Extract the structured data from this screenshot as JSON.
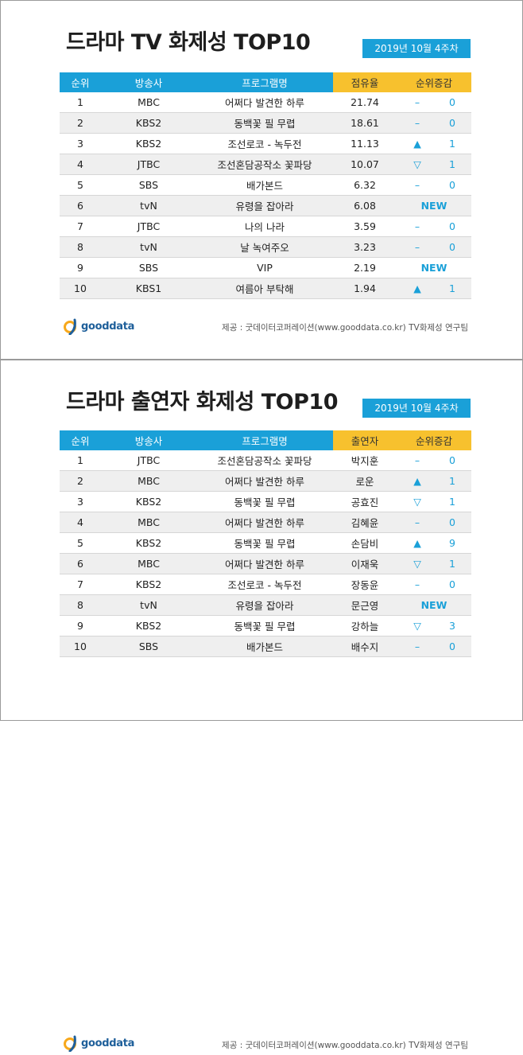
{
  "drama": {
    "title": "드라마 TV 화제성 TOP10",
    "date": "2019년 10월 4주차",
    "headers": [
      "순위",
      "방송사",
      "프로그램명",
      "점유율",
      "순위증감"
    ],
    "rows": [
      {
        "rank": "1",
        "broadcaster": "MBC",
        "program": "어쩌다 발견한 하루",
        "value": "21.74",
        "sym": "–",
        "num": "0"
      },
      {
        "rank": "2",
        "broadcaster": "KBS2",
        "program": "동백꽃 필 무렵",
        "value": "18.61",
        "sym": "–",
        "num": "0"
      },
      {
        "rank": "3",
        "broadcaster": "KBS2",
        "program": "조선로코 - 녹두전",
        "value": "11.13",
        "sym": "▲",
        "num": "1"
      },
      {
        "rank": "4",
        "broadcaster": "JTBC",
        "program": "조선혼담공작소 꽃파당",
        "value": "10.07",
        "sym": "▽",
        "num": "1"
      },
      {
        "rank": "5",
        "broadcaster": "SBS",
        "program": "배가본드",
        "value": "6.32",
        "sym": "–",
        "num": "0"
      },
      {
        "rank": "6",
        "broadcaster": "tvN",
        "program": "유령을 잡아라",
        "value": "6.08",
        "sym": "",
        "num": "NEW"
      },
      {
        "rank": "7",
        "broadcaster": "JTBC",
        "program": "나의 나라",
        "value": "3.59",
        "sym": "–",
        "num": "0"
      },
      {
        "rank": "8",
        "broadcaster": "tvN",
        "program": "날 녹여주오",
        "value": "3.23",
        "sym": "–",
        "num": "0"
      },
      {
        "rank": "9",
        "broadcaster": "SBS",
        "program": "VIP",
        "value": "2.19",
        "sym": "",
        "num": "NEW"
      },
      {
        "rank": "10",
        "broadcaster": "KBS1",
        "program": "여름아 부탁해",
        "value": "1.94",
        "sym": "▲",
        "num": "1"
      }
    ],
    "credit": "제공 : 굿데이터코퍼레이션(www.gooddata.co.kr) TV화제성 연구팀"
  },
  "cast": {
    "title": "드라마 출연자 화제성 TOP10",
    "date": "2019년 10월 4주차",
    "headers": [
      "순위",
      "방송사",
      "프로그램명",
      "출연자",
      "순위증감"
    ],
    "rows": [
      {
        "rank": "1",
        "broadcaster": "JTBC",
        "program": "조선혼담공작소 꽃파당",
        "value": "박지훈",
        "sym": "–",
        "num": "0"
      },
      {
        "rank": "2",
        "broadcaster": "MBC",
        "program": "어쩌다 발견한 하루",
        "value": "로운",
        "sym": "▲",
        "num": "1"
      },
      {
        "rank": "3",
        "broadcaster": "KBS2",
        "program": "동백꽃 필 무렵",
        "value": "공효진",
        "sym": "▽",
        "num": "1"
      },
      {
        "rank": "4",
        "broadcaster": "MBC",
        "program": "어쩌다 발견한 하루",
        "value": "김혜윤",
        "sym": "–",
        "num": "0"
      },
      {
        "rank": "5",
        "broadcaster": "KBS2",
        "program": "동백꽃 필 무렵",
        "value": "손담비",
        "sym": "▲",
        "num": "9"
      },
      {
        "rank": "6",
        "broadcaster": "MBC",
        "program": "어쩌다 발견한 하루",
        "value": "이재욱",
        "sym": "▽",
        "num": "1"
      },
      {
        "rank": "7",
        "broadcaster": "KBS2",
        "program": "조선로코 - 녹두전",
        "value": "장동윤",
        "sym": "–",
        "num": "0"
      },
      {
        "rank": "8",
        "broadcaster": "tvN",
        "program": "유령을 잡아라",
        "value": "문근영",
        "sym": "",
        "num": "NEW"
      },
      {
        "rank": "9",
        "broadcaster": "KBS2",
        "program": "동백꽃 필 무렵",
        "value": "강하늘",
        "sym": "▽",
        "num": "3"
      },
      {
        "rank": "10",
        "broadcaster": "SBS",
        "program": "배가본드",
        "value": "배수지",
        "sym": "–",
        "num": "0"
      }
    ],
    "credit": "제공 : 굿데이터코퍼레이션(www.gooddata.co.kr) TV화제성 연구팀"
  },
  "logo": {
    "text": "gooddata",
    "icon": "gooddata-logo-icon"
  },
  "colors": {
    "header_blue": "#1aa0d8",
    "header_yellow": "#f7c12e",
    "row_alt": "#efefef"
  }
}
